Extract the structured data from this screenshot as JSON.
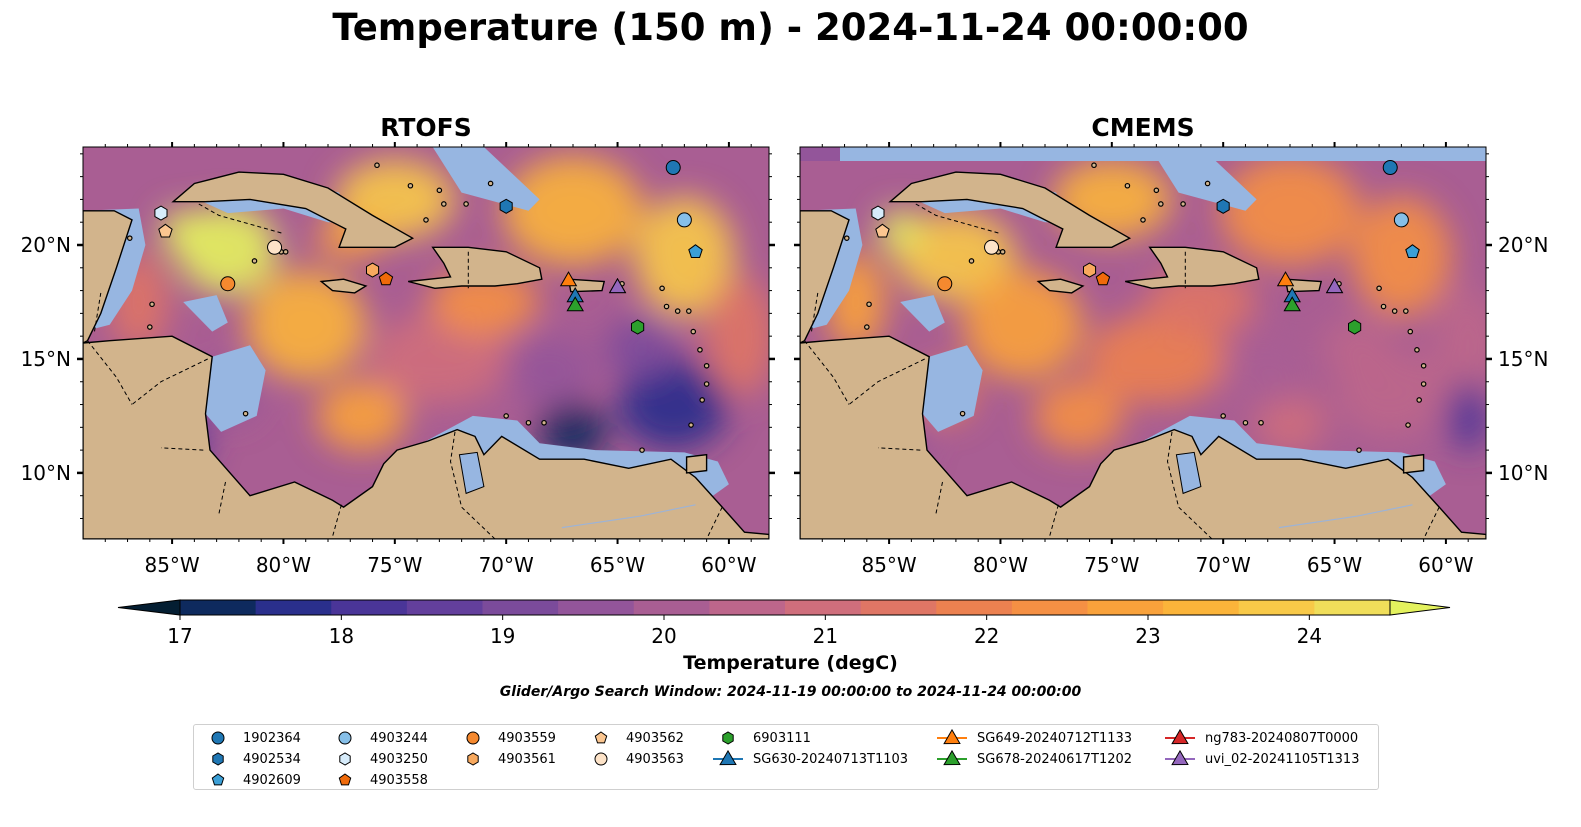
{
  "figure": {
    "title": "Temperature (150 m) - 2024-11-24 00:00:00",
    "panels": [
      {
        "title": "RTOFS",
        "model": "rtofs"
      },
      {
        "title": "CMEMS",
        "model": "cmems"
      }
    ],
    "lon_ticks": [
      "85°W",
      "80°W",
      "75°W",
      "70°W",
      "65°W",
      "60°W"
    ],
    "lat_ticks": [
      "20°N",
      "15°N",
      "10°N"
    ],
    "colorbar": {
      "label": "Temperature (degC)",
      "ticks": [
        "17",
        "18",
        "19",
        "20",
        "21",
        "22",
        "23",
        "24"
      ],
      "range": [
        16.625,
        24.5
      ],
      "colors": [
        "#041e32",
        "#0e2a5e",
        "#2a2f8c",
        "#4a3598",
        "#633f9c",
        "#7b4b9b",
        "#93559a",
        "#a95e93",
        "#bd668b",
        "#cf6e7c",
        "#df7665",
        "#ec8150",
        "#f59044",
        "#f9a23b",
        "#fbb43a",
        "#f8c948",
        "#f0de5a",
        "#e4f25e"
      ],
      "extends": "both"
    },
    "search_window": "Glider/Argo Search Window: 2024-11-19 00:00:00 to 2024-11-24 00:00:00",
    "map_colors": {
      "land": "#d2b48c",
      "shallow": "#97b6e1",
      "deep": "#041e32",
      "coast": "#000000"
    }
  },
  "legend": [
    {
      "label": "1902364",
      "marker": "circle",
      "color": "#1f77b4"
    },
    {
      "label": "4902534",
      "marker": "hexagon",
      "color": "#1f77b4"
    },
    {
      "label": "4902609",
      "marker": "pentagon",
      "color": "#3b9fd6"
    },
    {
      "label": "4903244",
      "marker": "circle",
      "color": "#86bfe8"
    },
    {
      "label": "4903250",
      "marker": "hexagon",
      "color": "#d7ecfb"
    },
    {
      "label": "4903558",
      "marker": "pentagon",
      "color": "#f06a0a"
    },
    {
      "label": "4903559",
      "marker": "circle",
      "color": "#f5892f"
    },
    {
      "label": "4903561",
      "marker": "hexagon",
      "color": "#f8a95e"
    },
    {
      "label": "4903562",
      "marker": "pentagon",
      "color": "#fbc690"
    },
    {
      "label": "4903563",
      "marker": "circle",
      "color": "#fde3c8"
    },
    {
      "label": "6903111",
      "marker": "hexagon",
      "color": "#2ca02c"
    },
    {
      "label": "SG630-20240713T1103",
      "marker": "triangle",
      "color": "#1f77b4"
    },
    {
      "label": "SG649-20240712T1133",
      "marker": "triangle",
      "color": "#ff7f0e"
    },
    {
      "label": "SG678-20240617T1202",
      "marker": "triangle",
      "color": "#2ca02c"
    },
    {
      "label": "ng783-20240807T0000",
      "marker": "triangle",
      "color": "#d62728"
    },
    {
      "label": "uvi_02-20241105T1313",
      "marker": "triangle",
      "color": "#9467bd"
    }
  ],
  "observations": [
    {
      "id": "1902364",
      "lon": -62.5,
      "lat": 23.4
    },
    {
      "id": "4902534",
      "lon": -70.0,
      "lat": 21.7
    },
    {
      "id": "4902609",
      "lon": -61.5,
      "lat": 19.7
    },
    {
      "id": "4903244",
      "lon": -62.0,
      "lat": 21.1
    },
    {
      "id": "4903250",
      "lon": -85.5,
      "lat": 21.4
    },
    {
      "id": "4903558",
      "lon": -75.4,
      "lat": 18.5
    },
    {
      "id": "4903559",
      "lon": -82.5,
      "lat": 18.3
    },
    {
      "id": "4903561",
      "lon": -76.0,
      "lat": 18.9
    },
    {
      "id": "4903562",
      "lon": -85.3,
      "lat": 20.6
    },
    {
      "id": "4903563",
      "lon": -80.4,
      "lat": 19.9
    },
    {
      "id": "6903111",
      "lon": -64.1,
      "lat": 16.4
    },
    {
      "id": "SG630-20240713T1103",
      "lon": -66.9,
      "lat": 17.8
    },
    {
      "id": "SG649-20240712T1133",
      "lon": -67.2,
      "lat": 18.5
    },
    {
      "id": "SG678-20240617T1202",
      "lon": -66.9,
      "lat": 17.4
    },
    {
      "id": "ng783-20240807T0000",
      "lon": -65.0,
      "lat": 18.2
    },
    {
      "id": "uvi_02-20241105T1313",
      "lon": -65.0,
      "lat": 18.2
    }
  ]
}
